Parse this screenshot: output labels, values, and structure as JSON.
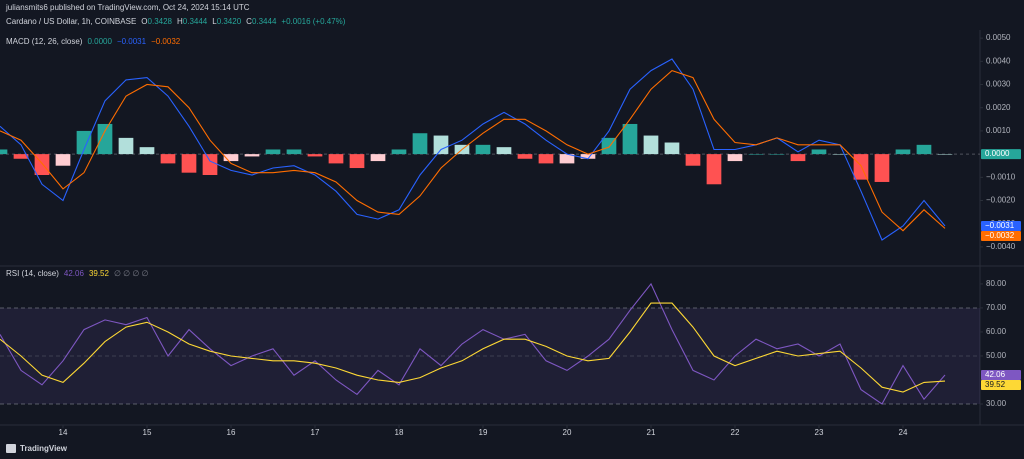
{
  "header": {
    "publisher": "juliansmits6 published on TradingView.com, Oct 24, 2024 15:14 UTC",
    "symbol": "Cardano / US Dollar, 1h, COINBASE",
    "ohlc": [
      {
        "label": "O",
        "value": "0.3428"
      },
      {
        "label": "H",
        "value": "0.3444"
      },
      {
        "label": "L",
        "value": "0.3420"
      },
      {
        "label": "C",
        "value": "0.3444"
      }
    ],
    "change": "+0.0016 (+0.47%)"
  },
  "footer": {
    "brand": "TradingView"
  },
  "chart_data": [
    {
      "type": "macd",
      "title": "MACD (12, 26, close)",
      "x": [
        13.25,
        13.5,
        13.75,
        14,
        14.25,
        14.5,
        14.75,
        15,
        15.25,
        15.5,
        15.75,
        16,
        16.25,
        16.5,
        16.75,
        17,
        17.25,
        17.5,
        17.75,
        18,
        18.25,
        18.5,
        18.75,
        19,
        19.25,
        19.5,
        19.75,
        20,
        20.25,
        20.5,
        20.75,
        21,
        21.25,
        21.5,
        21.75,
        22,
        22.25,
        22.5,
        22.75,
        23,
        23.25,
        23.5,
        23.75,
        24,
        24.25,
        24.5
      ],
      "series": [
        {
          "style": "histogram",
          "colors": {
            "up_rising": "#26a69a",
            "up_falling": "#b2dfdb",
            "down_falling": "#ff5252",
            "down_rising": "#ffcdd2"
          },
          "values": [
            0.0002,
            -0.0002,
            -0.0009,
            -0.0005,
            0.001,
            0.0013,
            0.0007,
            0.0003,
            -0.0004,
            -0.0008,
            -0.0009,
            -0.0003,
            -0.0001,
            0.0002,
            0.0002,
            -0.0001,
            -0.0004,
            -0.0006,
            -0.0003,
            0.0002,
            0.0009,
            0.0008,
            0.0004,
            0.0004,
            0.0003,
            -0.0002,
            -0.0004,
            -0.0004,
            -0.0002,
            0.0007,
            0.0013,
            0.0008,
            0.0005,
            -0.0005,
            -0.0013,
            -0.0003,
            0.0,
            0.0,
            -0.0003,
            0.0002,
            0.0,
            -0.0011,
            -0.0012,
            0.0002,
            0.0004,
            0.0
          ]
        },
        {
          "style": "line",
          "color": "#2962ff",
          "values": [
            0.0012,
            0.0004,
            -0.0013,
            -0.002,
            0.0002,
            0.0023,
            0.0032,
            0.0033,
            0.0025,
            0.0012,
            -0.0003,
            -0.0007,
            -0.0009,
            -0.0006,
            -0.0005,
            -0.0009,
            -0.0016,
            -0.0026,
            -0.0028,
            -0.0024,
            -0.0009,
            0.0002,
            0.0006,
            0.0013,
            0.0018,
            0.0013,
            0.0006,
            0.0,
            -0.0002,
            0.001,
            0.0028,
            0.0036,
            0.0041,
            0.0028,
            0.0002,
            0.0002,
            0.0004,
            0.0007,
            0.0001,
            0.0006,
            0.0004,
            -0.0016,
            -0.0037,
            -0.0031,
            -0.002,
            -0.0031
          ]
        },
        {
          "style": "line",
          "color": "#ff6d00",
          "values": [
            0.001,
            0.0006,
            -0.0004,
            -0.0015,
            -0.0008,
            0.001,
            0.0025,
            0.003,
            0.0029,
            0.002,
            0.0006,
            -0.0004,
            -0.0008,
            -0.0008,
            -0.0007,
            -0.0008,
            -0.0012,
            -0.002,
            -0.0025,
            -0.0026,
            -0.0018,
            -0.0006,
            0.0002,
            0.0009,
            0.0015,
            0.0015,
            0.001,
            0.0004,
            0.0,
            0.0003,
            0.0015,
            0.0028,
            0.0036,
            0.0033,
            0.0015,
            0.0005,
            0.0004,
            0.0007,
            0.0004,
            0.0004,
            0.0004,
            -0.0005,
            -0.0025,
            -0.0033,
            -0.0024,
            -0.0032
          ]
        }
      ],
      "legend_values": [
        {
          "text": "0.0000",
          "color": "#26a69a"
        },
        {
          "text": "−0.0031",
          "color": "#2962ff"
        },
        {
          "text": "−0.0032",
          "color": "#ff6d00"
        }
      ],
      "xlim": [
        13.25,
        24.917
      ],
      "ylim": [
        -0.00465,
        0.00535
      ],
      "yticks": [
        {
          "value": 0.005,
          "label": "0.0050"
        },
        {
          "value": 0.004,
          "label": "0.0040"
        },
        {
          "value": 0.003,
          "label": "0.0030"
        },
        {
          "value": 0.002,
          "label": "0.0020"
        },
        {
          "value": 0.001,
          "label": "0.0010"
        },
        {
          "value": -0.001,
          "label": "−0.0010"
        },
        {
          "value": -0.002,
          "label": "−0.0020"
        },
        {
          "value": -0.003,
          "label": "−0.0030"
        },
        {
          "value": -0.004,
          "label": "−0.0040"
        }
      ],
      "zero_line": true
    },
    {
      "type": "rsi",
      "title": "RSI (14, close)",
      "legend_extra": "∅ ∅ ∅ ∅",
      "x": [
        13.25,
        13.5,
        13.75,
        14,
        14.25,
        14.5,
        14.75,
        15,
        15.25,
        15.5,
        15.75,
        16,
        16.25,
        16.5,
        16.75,
        17,
        17.25,
        17.5,
        17.75,
        18,
        18.25,
        18.5,
        18.75,
        19,
        19.25,
        19.5,
        19.75,
        20,
        20.25,
        20.5,
        20.75,
        21,
        21.25,
        21.5,
        21.75,
        22,
        22.25,
        22.5,
        22.75,
        23,
        23.25,
        23.5,
        23.75,
        24,
        24.25,
        24.5
      ],
      "series": [
        {
          "style": "line",
          "color": "#7e57c2",
          "values": [
            59,
            44,
            38,
            48,
            61,
            65,
            63,
            66,
            50,
            61,
            53,
            46,
            50,
            53,
            42,
            48,
            40,
            34,
            44,
            38,
            53,
            46,
            55,
            61,
            57,
            59,
            48,
            44,
            50,
            57,
            69,
            80,
            61,
            44,
            40,
            50,
            57,
            53,
            55,
            50,
            55,
            36,
            30,
            46,
            32,
            42.06
          ]
        },
        {
          "style": "line",
          "color": "#fdd835",
          "values": [
            57,
            50,
            42,
            39,
            47,
            56,
            62,
            64,
            60,
            55,
            52,
            50,
            49,
            48,
            48,
            47,
            45,
            42,
            40,
            39,
            41,
            45,
            48,
            53,
            57,
            57,
            54,
            50,
            48,
            49,
            60,
            72,
            72,
            62,
            50,
            46,
            49,
            52,
            50,
            51,
            52,
            45,
            37,
            35,
            39,
            39.52
          ]
        }
      ],
      "legend_values": [
        {
          "text": "42.06",
          "color": "#7e57c2"
        },
        {
          "text": "39.52",
          "color": "#fdd835"
        }
      ],
      "bands": {
        "upper": 70,
        "middle": 50,
        "lower": 30
      },
      "xlim": [
        13.25,
        24.917
      ],
      "xticks": [
        14,
        15,
        16,
        17,
        18,
        19,
        20,
        21,
        22,
        23,
        24
      ],
      "ylim": [
        21.25,
        85.8
      ],
      "yticks": [
        {
          "value": 80,
          "label": "80.00"
        },
        {
          "value": 70,
          "label": "70.00"
        },
        {
          "value": 60,
          "label": "60.00"
        },
        {
          "value": 50,
          "label": "50.00"
        },
        {
          "value": 40,
          "label": "40.00"
        },
        {
          "value": 30,
          "label": "30.00"
        }
      ]
    }
  ]
}
